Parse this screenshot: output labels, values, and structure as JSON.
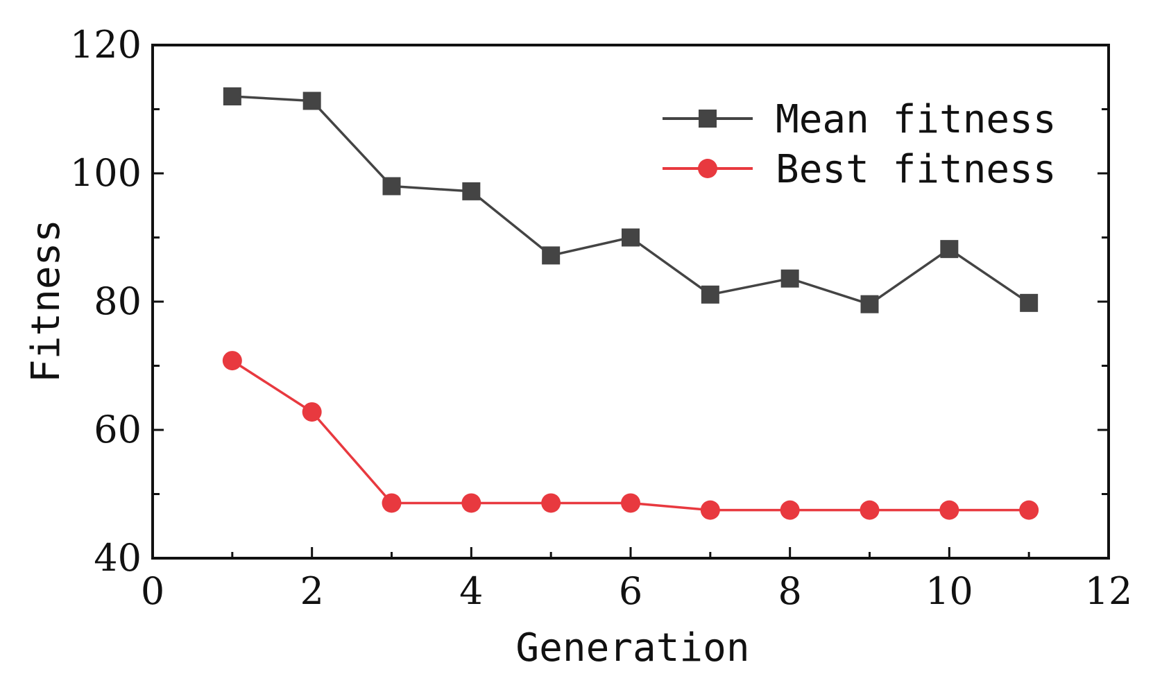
{
  "chart_data": {
    "type": "line",
    "title": "",
    "xlabel": "Generation",
    "ylabel": "Fitness",
    "xlim": [
      0,
      12
    ],
    "ylim": [
      40,
      120
    ],
    "xticks": [
      0,
      2,
      4,
      6,
      8,
      10,
      12
    ],
    "yticks": [
      40,
      60,
      80,
      100,
      120
    ],
    "minor_yticks": [
      50,
      70,
      90,
      110
    ],
    "minor_xticks": [
      1,
      3,
      5,
      7,
      9,
      11
    ],
    "grid": false,
    "legend_position": "top-right",
    "x": [
      1,
      2,
      3,
      4,
      5,
      6,
      7,
      8,
      9,
      10,
      11
    ],
    "series": [
      {
        "name": "Mean fitness",
        "color": "#444444",
        "marker": "square",
        "values": [
          112,
          111.3,
          98,
          97.2,
          87.2,
          90,
          81.1,
          83.6,
          79.6,
          88.2,
          79.8
        ]
      },
      {
        "name": "Best fitness",
        "color": "#e8393f",
        "marker": "circle",
        "values": [
          70.8,
          62.8,
          48.6,
          48.6,
          48.6,
          48.6,
          47.5,
          47.5,
          47.5,
          47.5,
          47.5
        ]
      }
    ]
  }
}
